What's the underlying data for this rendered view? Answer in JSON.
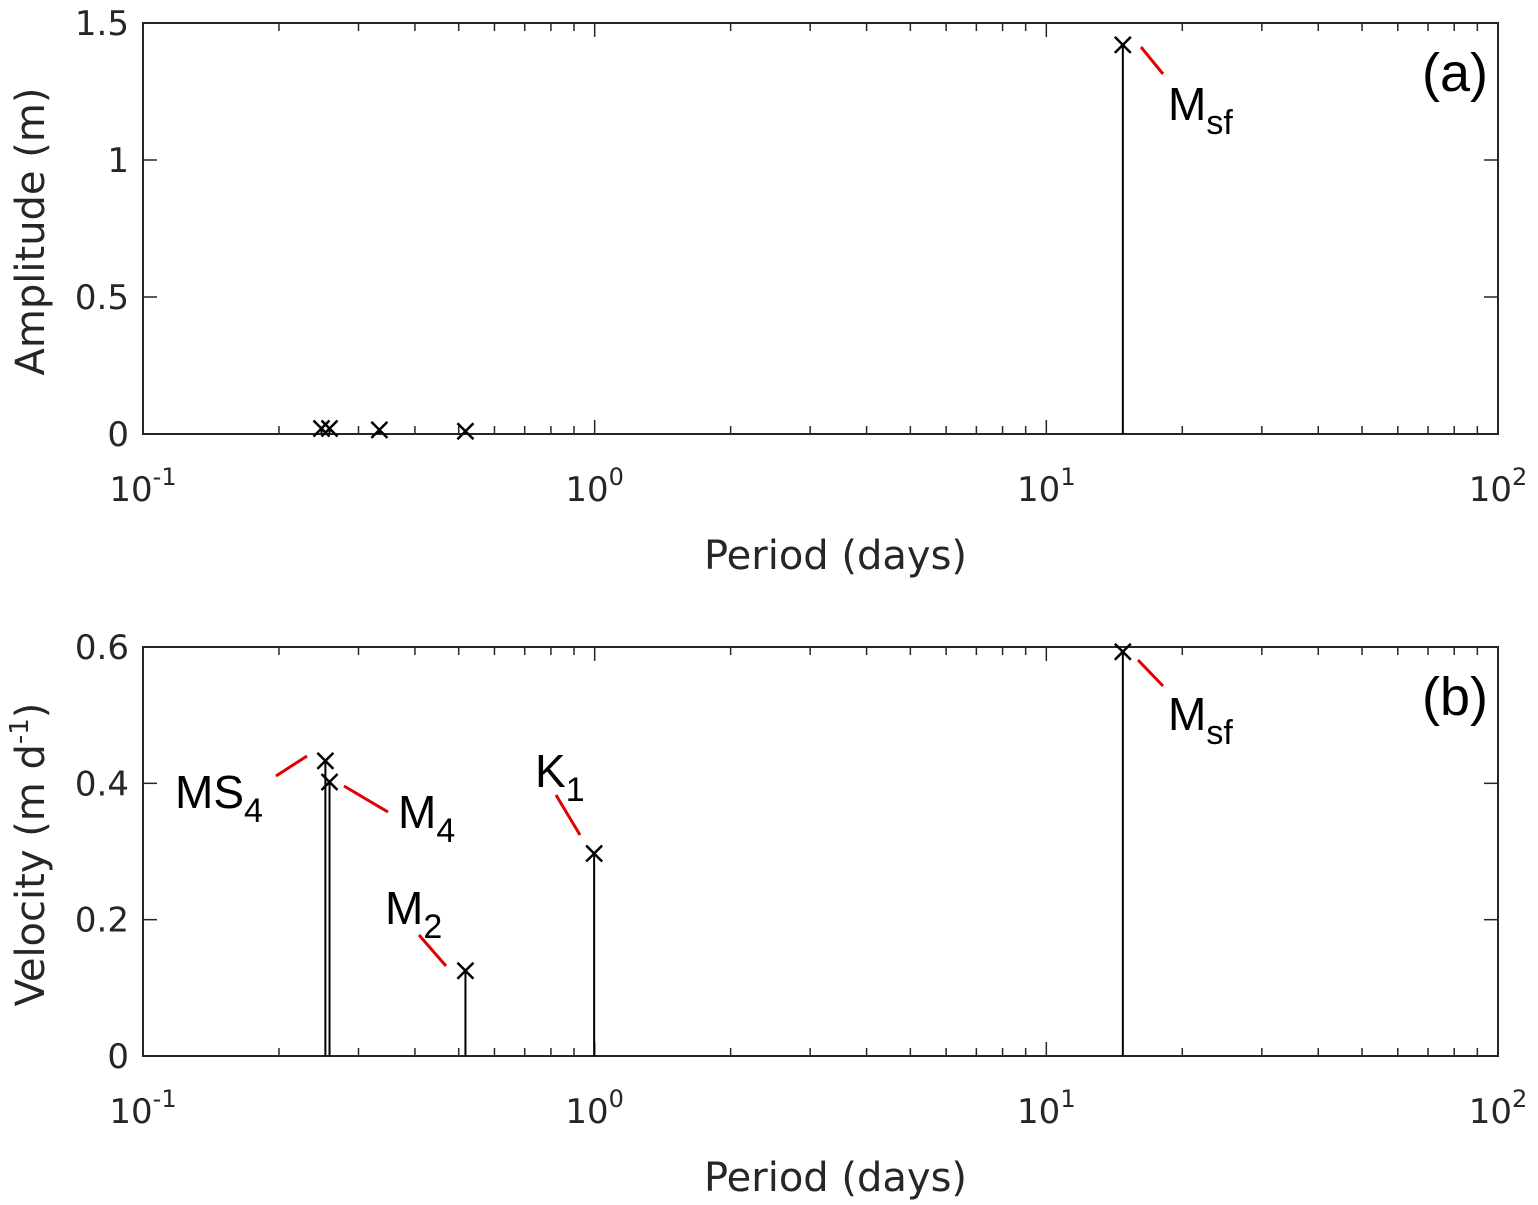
{
  "chart_data": [
    {
      "type": "stem",
      "panel_label": "(a)",
      "xlabel": "Period (days)",
      "ylabel": "Amplitude (m)",
      "xscale": "log",
      "xlim": [
        0.1,
        100
      ],
      "ylim": [
        0,
        1.5
      ],
      "yticks": [
        "0",
        "0.5",
        "1",
        "1.5"
      ],
      "xtick_base": "10",
      "xtick_exponents": [
        "-1",
        "0",
        "1",
        "2"
      ],
      "points": [
        {
          "x": 0.2484,
          "y": 0.02,
          "label": "",
          "sub": ""
        },
        {
          "x": 0.2588,
          "y": 0.02,
          "label": "",
          "sub": ""
        },
        {
          "x": 0.3337,
          "y": 0.015,
          "label": "",
          "sub": ""
        },
        {
          "x": 0.5175,
          "y": 0.01,
          "label": "",
          "sub": ""
        },
        {
          "x": 14.77,
          "y": 1.42,
          "label": "M",
          "sub": "sf"
        }
      ]
    },
    {
      "type": "stem",
      "panel_label": "(b)",
      "xlabel": "Period (days)",
      "ylabel": "Velocity (m d",
      "ylabel_sup": "-1",
      "ylabel_close": ")",
      "xscale": "log",
      "xlim": [
        0.1,
        100
      ],
      "ylim": [
        0,
        0.6
      ],
      "yticks": [
        "0",
        "0.2",
        "0.4",
        "0.6"
      ],
      "xtick_base": "10",
      "xtick_exponents": [
        "-1",
        "0",
        "1",
        "2"
      ],
      "points": [
        {
          "x": 0.2534,
          "y": 0.433,
          "label": "MS",
          "sub": "4"
        },
        {
          "x": 0.2588,
          "y": 0.402,
          "label": "M",
          "sub": "4"
        },
        {
          "x": 0.5175,
          "y": 0.125,
          "label": "M",
          "sub": "2"
        },
        {
          "x": 0.9973,
          "y": 0.297,
          "label": "K",
          "sub": "1"
        },
        {
          "x": 14.77,
          "y": 0.593,
          "label": "M",
          "sub": "sf"
        }
      ]
    }
  ]
}
